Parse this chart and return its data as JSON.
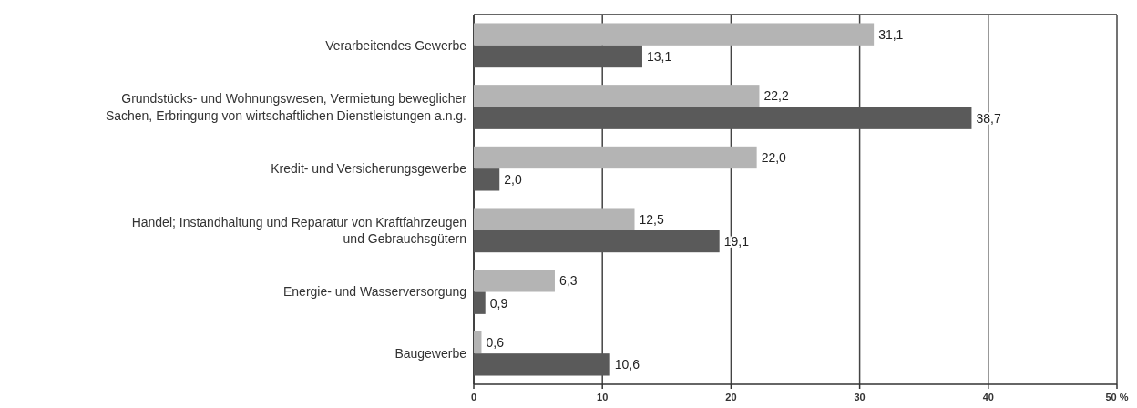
{
  "chart_data": {
    "type": "bar",
    "orientation": "horizontal",
    "categories": [
      "Verarbeitendes Gewerbe",
      "Grundstücks- und Wohnungswesen, Vermietung beweglicher Sachen, Erbringung von wirtschaftlichen Dienstleistungen a.n.g.",
      "Kredit- und Versicherungsgewerbe",
      "Handel; Instandhaltung und Reparatur von Kraftfahrzeugen und Gebrauchsgütern",
      "Energie- und Wasserversorgung",
      "Baugewerbe"
    ],
    "series": [
      {
        "color": "#b4b4b4",
        "values": [
          31.1,
          22.2,
          22.0,
          12.5,
          6.3,
          0.6
        ],
        "value_labels": [
          "31,1",
          "22,2",
          "22,0",
          "12,5",
          "6,3",
          "0,6"
        ]
      },
      {
        "color": "#5a5a5a",
        "values": [
          13.1,
          38.7,
          2.0,
          19.1,
          0.9,
          10.6
        ],
        "value_labels": [
          "13,1",
          "38,7",
          "2,0",
          "19,1",
          "0,9",
          "10,6"
        ]
      }
    ],
    "xlim": [
      0,
      50
    ],
    "xticks": [
      0,
      10,
      20,
      30,
      40,
      {
        "value": 50,
        "label": "50 %"
      }
    ],
    "grid": "x"
  }
}
